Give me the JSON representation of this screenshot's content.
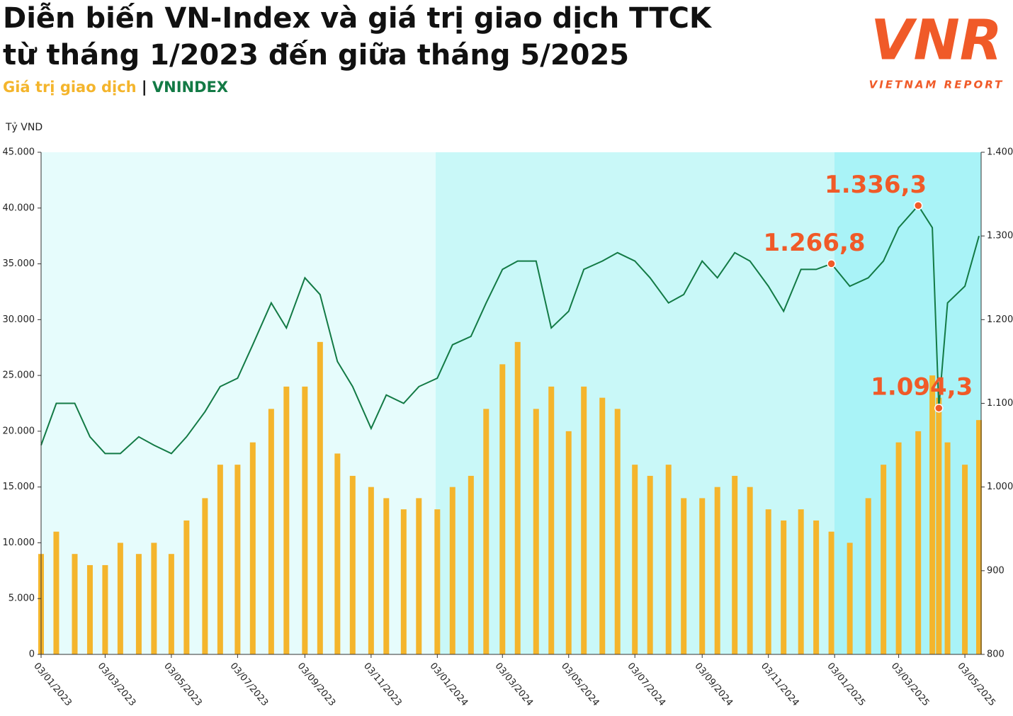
{
  "chart_data": {
    "type": "bar-line",
    "title": "Diễn biến VN-Index và giá trị giao dịch TTCK",
    "subtitle": "từ tháng 1/2023 đến giữa tháng 5/2025",
    "y_label": "Tỷ VND",
    "logo": "VNR",
    "logo_caption": "VIETNAM REPORT",
    "x": [
      "03/01/2023",
      "17/01/2023",
      "03/02/2023",
      "17/02/2023",
      "03/03/2023",
      "17/03/2023",
      "03/04/2023",
      "17/04/2023",
      "03/05/2023",
      "17/05/2023",
      "03/06/2023",
      "17/06/2023",
      "03/07/2023",
      "17/07/2023",
      "03/08/2023",
      "17/08/2023",
      "03/09/2023",
      "17/09/2023",
      "03/10/2023",
      "17/10/2023",
      "03/11/2023",
      "17/11/2023",
      "03/12/2023",
      "17/12/2023",
      "03/01/2024",
      "17/01/2024",
      "03/02/2024",
      "17/02/2024",
      "03/03/2024",
      "17/03/2024",
      "03/04/2024",
      "17/04/2024",
      "03/05/2024",
      "17/05/2024",
      "03/06/2024",
      "17/06/2024",
      "03/07/2024",
      "17/07/2024",
      "03/08/2024",
      "17/08/2024",
      "03/09/2024",
      "17/09/2024",
      "03/10/2024",
      "17/10/2024",
      "03/11/2024",
      "17/11/2024",
      "03/12/2024",
      "17/12/2024",
      "31/12/2024",
      "17/01/2025",
      "03/02/2025",
      "17/02/2025",
      "03/03/2025",
      "21/03/2025",
      "03/04/2025",
      "09/04/2025",
      "17/04/2025",
      "03/05/2025",
      "16/05/2025"
    ],
    "series": [
      {
        "name": "Giá trị giao dịch",
        "color": "#f4b52c",
        "values": [
          9000,
          11000,
          9000,
          8000,
          8000,
          10000,
          9000,
          10000,
          9000,
          12000,
          14000,
          17000,
          17000,
          19000,
          22000,
          24000,
          24000,
          28000,
          18000,
          16000,
          15000,
          14000,
          13000,
          14000,
          13000,
          15000,
          16000,
          22000,
          26000,
          28000,
          22000,
          24000,
          20000,
          24000,
          23000,
          22000,
          17000,
          16000,
          17000,
          14000,
          14000,
          15000,
          16000,
          15000,
          13000,
          12000,
          13000,
          12000,
          11000,
          10000,
          14000,
          17000,
          19000,
          20000,
          25000,
          23000,
          19000,
          17000,
          21000
        ]
      },
      {
        "name": "VNINDEX",
        "color": "#137a45",
        "axis": "y2",
        "values": [
          1050,
          1100,
          1100,
          1060,
          1040,
          1040,
          1060,
          1050,
          1040,
          1060,
          1090,
          1120,
          1130,
          1170,
          1220,
          1190,
          1250,
          1230,
          1150,
          1120,
          1070,
          1110,
          1100,
          1120,
          1130,
          1170,
          1180,
          1220,
          1260,
          1270,
          1270,
          1190,
          1210,
          1260,
          1270,
          1280,
          1270,
          1250,
          1220,
          1230,
          1270,
          1250,
          1280,
          1270,
          1240,
          1210,
          1260,
          1260,
          1266.8,
          1240,
          1250,
          1270,
          1310,
          1336.3,
          1310,
          1094.3,
          1220,
          1240,
          1300
        ]
      }
    ],
    "annotations": [
      {
        "x": "31/12/2024",
        "value": 1266.8,
        "label": "1.266,8"
      },
      {
        "x": "21/03/2025",
        "value": 1336.3,
        "label": "1.336,3"
      },
      {
        "x": "09/04/2025",
        "value": 1094.3,
        "label": "1.094,3"
      }
    ],
    "annotation_color": "#f05a28",
    "xlim": [
      "03/01/2023",
      "16/05/2025"
    ],
    "xticks": [
      "03/01/2023",
      "03/03/2023",
      "03/05/2023",
      "03/07/2023",
      "03/09/2023",
      "03/11/2023",
      "03/01/2024",
      "03/03/2024",
      "03/05/2024",
      "03/07/2024",
      "03/09/2024",
      "03/11/2024",
      "03/01/2025",
      "03/03/2025",
      "03/05/2025"
    ],
    "ylim": [
      0,
      45000
    ],
    "yticks": [
      0,
      {
        "value": 5000,
        "label": "5.000"
      },
      {
        "value": 10000,
        "label": "10.000"
      },
      {
        "value": 15000,
        "label": "15.000"
      },
      {
        "value": 20000,
        "label": "20.000"
      },
      {
        "value": 25000,
        "label": "25.000"
      },
      {
        "value": 30000,
        "label": "30.000"
      },
      {
        "value": 35000,
        "label": "35.000"
      },
      {
        "value": 40000,
        "label": "40.000"
      },
      {
        "value": 45000,
        "label": "45.000"
      }
    ],
    "y2lim": [
      800,
      1400
    ],
    "y2ticks": [
      800,
      900,
      {
        "value": 1000,
        "label": "1.000"
      },
      {
        "value": 1100,
        "label": "1.100"
      },
      {
        "value": 1200,
        "label": "1.200"
      },
      {
        "value": 1300,
        "label": "1.300"
      },
      {
        "value": 1400,
        "label": "1.400"
      }
    ]
  }
}
